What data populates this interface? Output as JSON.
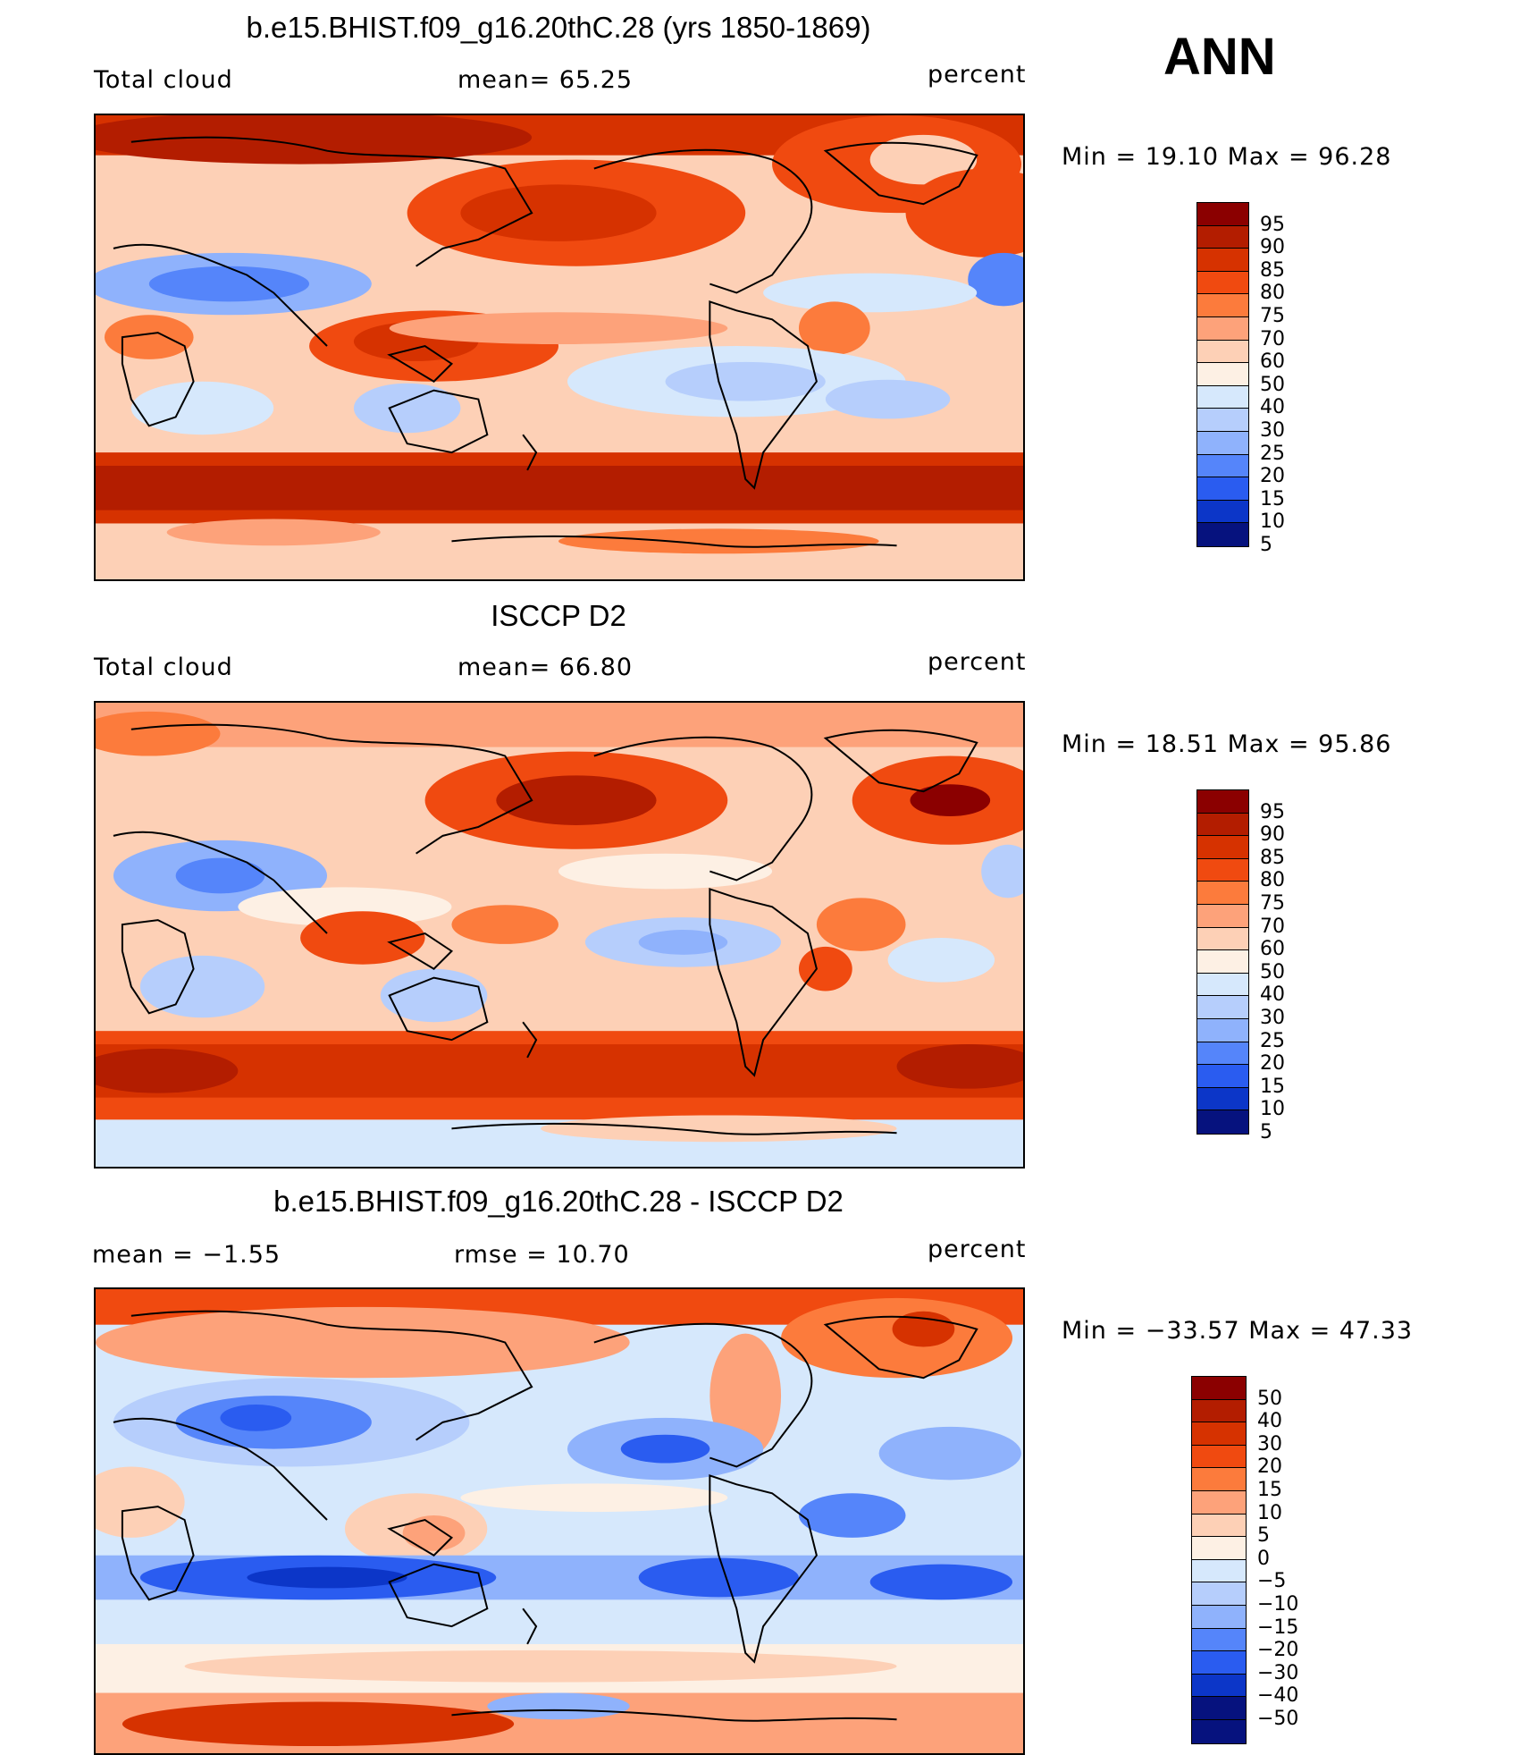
{
  "season": "ANN",
  "panels": [
    {
      "title": "b.e15.BHIST.f09_g16.20thC.28 (yrs 1850-1869)",
      "left_label": "Total cloud",
      "stat1": "mean=   65.25",
      "units": "percent",
      "minmax": "Min =   19.10  Max =   96.28",
      "colorbar_labels": [
        "95",
        "90",
        "85",
        "80",
        "75",
        "70",
        "60",
        "50",
        "40",
        "30",
        "25",
        "20",
        "15",
        "10",
        "5"
      ],
      "colors": [
        "#8b0000",
        "#b31d00",
        "#d63200",
        "#f04a10",
        "#fc7b3c",
        "#fda27a",
        "#fdd0b6",
        "#fdf0e4",
        "#d6e8fc",
        "#b6cefc",
        "#8fb2fc",
        "#5585fa",
        "#2a5cf0",
        "#0c36c8",
        "#06127e"
      ]
    },
    {
      "title": "ISCCP D2",
      "left_label": "Total cloud",
      "stat1": "mean=   66.80",
      "units": "percent",
      "minmax": "Min =   18.51  Max =   95.86",
      "colorbar_labels": [
        "95",
        "90",
        "85",
        "80",
        "75",
        "70",
        "60",
        "50",
        "40",
        "30",
        "25",
        "20",
        "15",
        "10",
        "5"
      ],
      "colors": [
        "#8b0000",
        "#b31d00",
        "#d63200",
        "#f04a10",
        "#fc7b3c",
        "#fda27a",
        "#fdd0b6",
        "#fdf0e4",
        "#d6e8fc",
        "#b6cefc",
        "#8fb2fc",
        "#5585fa",
        "#2a5cf0",
        "#0c36c8",
        "#06127e"
      ]
    },
    {
      "title": "b.e15.BHIST.f09_g16.20thC.28 - ISCCP D2",
      "left_label": "mean =   −1.55",
      "stat1": "rmse =   10.70",
      "units": "percent",
      "minmax": "Min = −33.57  Max =   47.33",
      "colorbar_labels": [
        "50",
        "40",
        "30",
        "20",
        "15",
        "10",
        "5",
        "0",
        "−5",
        "−10",
        "−15",
        "−20",
        "−30",
        "−40",
        "−50"
      ],
      "colors": [
        "#8b0000",
        "#b31d00",
        "#d63200",
        "#f04a10",
        "#fc7b3c",
        "#fda27a",
        "#fdd0b6",
        "#fdf0e4",
        "#d6e8fc",
        "#b6cefc",
        "#8fb2fc",
        "#5585fa",
        "#2a5cf0",
        "#0c36c8",
        "#06127e",
        "#06127e"
      ]
    }
  ]
}
